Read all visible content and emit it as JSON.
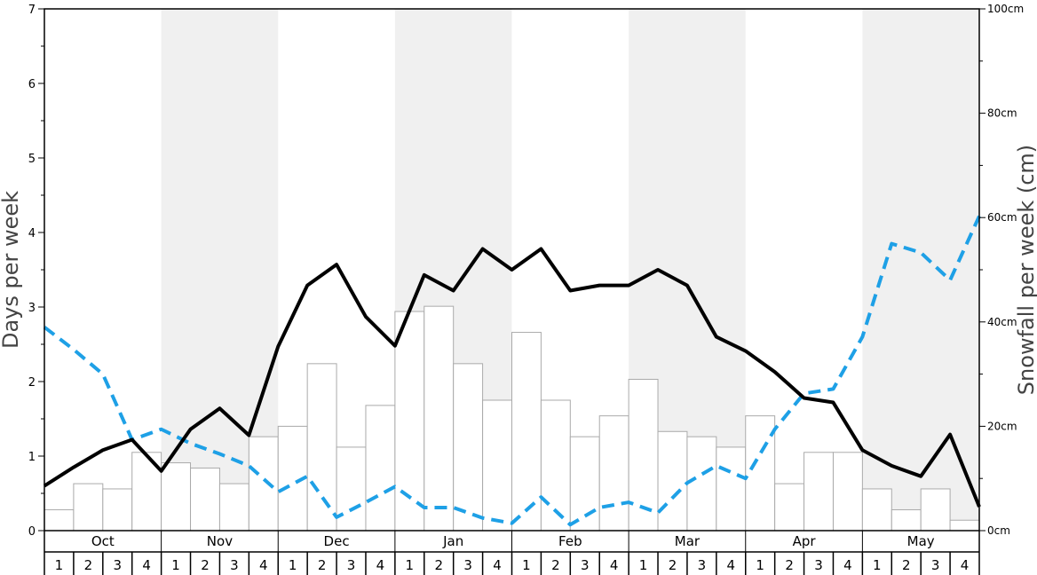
{
  "chart_data": {
    "type": "bar+line",
    "title": "",
    "ylabel": "Days per week",
    "y2label": "Snowfall per week (cm)",
    "ylim": [
      0,
      7
    ],
    "y2lim": [
      0,
      100
    ],
    "yticks": [
      "0",
      "1",
      "2",
      "3",
      "4",
      "5",
      "6",
      "7"
    ],
    "y2ticks": [
      "0cm",
      "20cm",
      "40cm",
      "60cm",
      "80cm",
      "100cm"
    ],
    "months": [
      "Oct",
      "Nov",
      "Dec",
      "Jan",
      "Feb",
      "Mar",
      "Apr",
      "May"
    ],
    "weeks": [
      "1",
      "2",
      "3",
      "4"
    ],
    "shaded_months": [
      "Nov",
      "Jan",
      "Mar",
      "May"
    ],
    "colors": {
      "bar_fill": "#ffffff",
      "bar_stroke": "#aaaaaa",
      "shade": "#f0f0f0",
      "solid_line": "#000000",
      "dashed_line": "#1ea0e6"
    },
    "series": [
      {
        "type": "bar",
        "axis": "right",
        "values": [
          4,
          9,
          8,
          15,
          13,
          12,
          9,
          18,
          20,
          32,
          16,
          24,
          42,
          43,
          32,
          25,
          38,
          25,
          18,
          22,
          29,
          19,
          18,
          16,
          22,
          9,
          15,
          15,
          8,
          4,
          8,
          2
        ]
      },
      {
        "type": "line",
        "style": "solid",
        "axis": "left",
        "values": [
          0.6,
          0.85,
          1.08,
          1.22,
          0.8,
          1.36,
          1.64,
          1.28,
          2.47,
          3.29,
          3.57,
          2.87,
          2.48,
          3.43,
          3.22,
          3.78,
          3.5,
          3.78,
          3.22,
          3.29,
          3.29,
          3.5,
          3.29,
          2.6,
          2.41,
          2.13,
          1.78,
          1.72,
          1.08,
          0.87,
          0.73,
          1.29,
          0.32
        ]
      },
      {
        "type": "line",
        "style": "dashed",
        "axis": "left",
        "values": [
          2.73,
          2.43,
          2.1,
          1.22,
          1.36,
          1.17,
          1.03,
          0.87,
          0.52,
          0.73,
          0.18,
          0.38,
          0.59,
          0.31,
          0.31,
          0.17,
          0.1,
          0.45,
          0.08,
          0.31,
          0.38,
          0.24,
          0.64,
          0.87,
          0.7,
          1.36,
          1.84,
          1.9,
          2.6,
          3.85,
          3.73,
          3.36,
          4.22
        ]
      }
    ]
  }
}
